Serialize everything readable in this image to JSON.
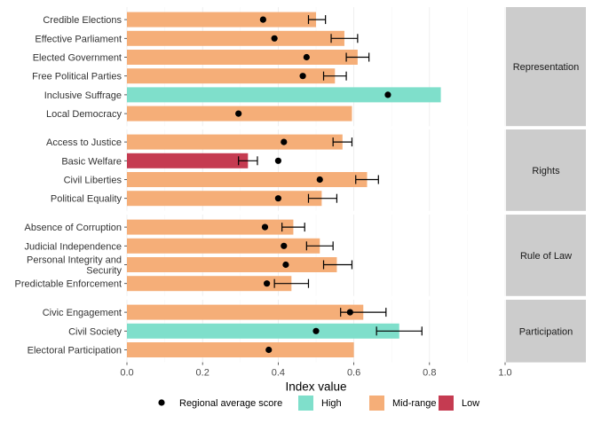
{
  "chart_data": {
    "type": "bar",
    "orientation": "horizontal",
    "xlabel": "Index value",
    "xlim": [
      0,
      1
    ],
    "x_ticks": [
      "0.0",
      "0.2",
      "0.4",
      "0.6",
      "0.8",
      "1.0"
    ],
    "grid": true,
    "legend_position": "bottom",
    "legend": [
      {
        "label": "Regional average score",
        "kind": "point",
        "color": "#000000"
      },
      {
        "label": "High",
        "kind": "fill",
        "color": "#7FDFCB"
      },
      {
        "label": "Mid-range",
        "kind": "fill",
        "color": "#F5AE78"
      },
      {
        "label": "Low",
        "kind": "fill",
        "color": "#C53B51"
      }
    ],
    "category_colors": {
      "High": "#7FDFCB",
      "Mid-range": "#F5AE78",
      "Low": "#C53B51"
    },
    "panels": [
      {
        "name": "Representation",
        "rows": [
          {
            "label": "Credible Elections",
            "value": 0.5,
            "category": "Mid-range",
            "avg": 0.36,
            "err": [
              0.48,
              0.525
            ]
          },
          {
            "label": "Effective Parliament",
            "value": 0.575,
            "category": "Mid-range",
            "avg": 0.39,
            "err": [
              0.54,
              0.61
            ]
          },
          {
            "label": "Elected Government",
            "value": 0.61,
            "category": "Mid-range",
            "avg": 0.475,
            "err": [
              0.58,
              0.64
            ]
          },
          {
            "label": "Free Political Parties",
            "value": 0.55,
            "category": "Mid-range",
            "avg": 0.465,
            "err": [
              0.52,
              0.58
            ]
          },
          {
            "label": "Inclusive Suffrage",
            "value": 0.83,
            "category": "High",
            "avg": 0.69,
            "err": null
          },
          {
            "label": "Local Democracy",
            "value": 0.595,
            "category": "Mid-range",
            "avg": 0.295,
            "err": null
          }
        ]
      },
      {
        "name": "Rights",
        "rows": [
          {
            "label": "Access to Justice",
            "value": 0.57,
            "category": "Mid-range",
            "avg": 0.415,
            "err": [
              0.545,
              0.595
            ]
          },
          {
            "label": "Basic Welfare",
            "value": 0.32,
            "category": "Low",
            "avg": 0.4,
            "err": [
              0.295,
              0.345
            ]
          },
          {
            "label": "Civil Liberties",
            "value": 0.635,
            "category": "Mid-range",
            "avg": 0.51,
            "err": [
              0.605,
              0.665
            ]
          },
          {
            "label": "Political Equality",
            "value": 0.515,
            "category": "Mid-range",
            "avg": 0.4,
            "err": [
              0.48,
              0.555
            ]
          }
        ]
      },
      {
        "name": "Rule of Law",
        "rows": [
          {
            "label": "Absence of Corruption",
            "value": 0.44,
            "category": "Mid-range",
            "avg": 0.365,
            "err": [
              0.41,
              0.47
            ]
          },
          {
            "label": "Judicial Independence",
            "value": 0.51,
            "category": "Mid-range",
            "avg": 0.415,
            "err": [
              0.475,
              0.545
            ]
          },
          {
            "label": "Personal Integrity and Security",
            "value": 0.555,
            "category": "Mid-range",
            "avg": 0.42,
            "err": [
              0.52,
              0.595
            ]
          },
          {
            "label": "Predictable Enforcement",
            "value": 0.435,
            "category": "Mid-range",
            "avg": 0.37,
            "err": [
              0.39,
              0.48
            ]
          }
        ]
      },
      {
        "name": "Participation",
        "rows": [
          {
            "label": "Civic Engagement",
            "value": 0.625,
            "category": "Mid-range",
            "avg": 0.59,
            "err": [
              0.565,
              0.685
            ]
          },
          {
            "label": "Civil Society",
            "value": 0.72,
            "category": "High",
            "avg": 0.5,
            "err": [
              0.66,
              0.78
            ]
          },
          {
            "label": "Electoral Participation",
            "value": 0.6,
            "category": "Mid-range",
            "avg": 0.375,
            "err": null
          }
        ]
      }
    ]
  }
}
